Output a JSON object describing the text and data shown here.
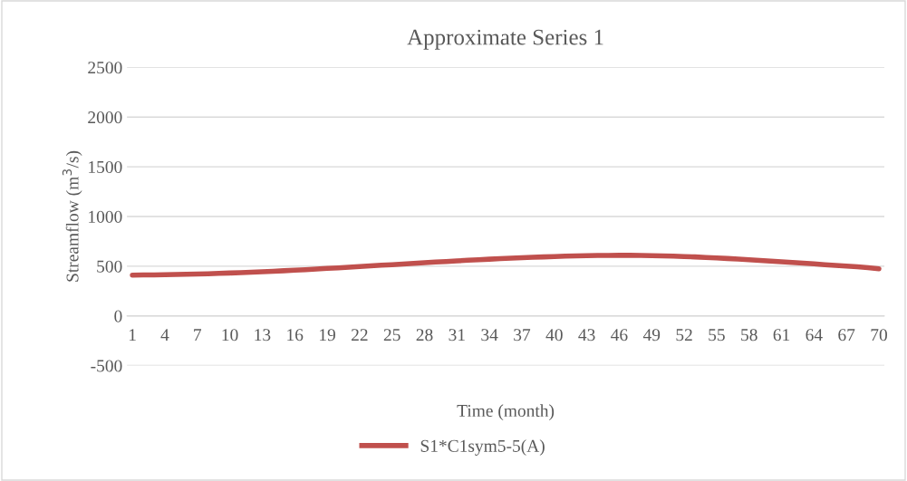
{
  "chart_data": {
    "type": "line",
    "title": "Approximate Series 1",
    "xlabel": "Time (month)",
    "ylabel": "Streamflow (m$^{3}$/s)",
    "categories": [
      "1",
      null,
      null,
      "4",
      null,
      null,
      "7",
      null,
      null,
      "10",
      null,
      null,
      "13",
      null,
      null,
      "16",
      null,
      null,
      "19",
      null,
      null,
      "22",
      null,
      null,
      "25",
      null,
      null,
      "28",
      null,
      null,
      "31",
      null,
      null,
      "34",
      null,
      null,
      "37",
      null,
      null,
      "40",
      null,
      null,
      "43",
      null,
      null,
      "46",
      null,
      null,
      "49",
      null,
      null,
      "52",
      null,
      null,
      "55",
      null,
      null,
      "58",
      null,
      null,
      "61",
      null,
      null,
      "64",
      null,
      null,
      "67",
      null,
      null,
      "70"
    ],
    "series": [
      {
        "name": "S1*C1sym5-5(A)",
        "color": "#c0504d",
        "values": [
          410,
          411,
          412,
          414,
          416,
          418,
          421,
          424,
          427,
          431,
          435,
          439,
          444,
          449,
          454,
          459,
          465,
          471,
          477,
          483,
          490,
          496,
          503,
          509,
          515,
          522,
          528,
          535,
          541,
          547,
          553,
          559,
          565,
          570,
          575,
          580,
          585,
          589,
          593,
          597,
          600,
          603,
          605,
          607,
          608,
          609,
          609,
          608,
          606,
          604,
          601,
          597,
          593,
          588,
          583,
          577,
          571,
          565,
          558,
          551,
          544,
          537,
          530,
          523,
          515,
          508,
          501,
          493,
          485,
          474
        ]
      }
    ],
    "ylim": [
      -500,
      2500
    ],
    "yticks": [
      -500,
      0,
      500,
      1000,
      1500,
      2000,
      2500
    ],
    "grid": "y",
    "legend": "bottom",
    "marker": "none",
    "line_style": "solid"
  }
}
